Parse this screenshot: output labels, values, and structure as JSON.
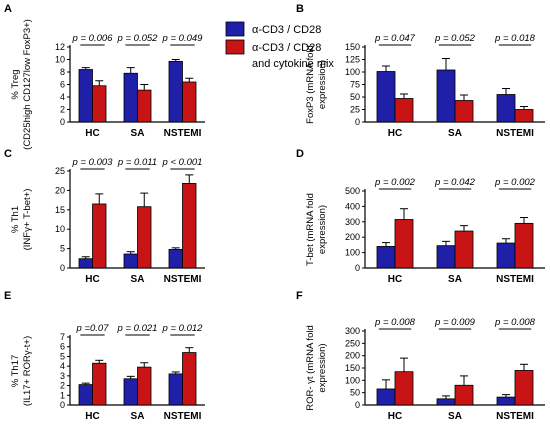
{
  "legend": {
    "items": [
      {
        "label": "α-CD3 / CD28",
        "color": "#1f1fa8"
      },
      {
        "label": "α-CD3 / CD28",
        "color": "#c81414"
      },
      {
        "label": "and cytokine mix",
        "color": null
      }
    ]
  },
  "colors": {
    "series1": "#1f1fa8",
    "series2": "#c81414"
  },
  "chart_data": [
    {
      "panel": "A",
      "type": "bar",
      "ylabel_lines": [
        "% Treg",
        "(CD25high CD127low FoxP3+)"
      ],
      "ylim": [
        0,
        12
      ],
      "yticks": [
        "0",
        "2",
        "4",
        "6",
        "8",
        "10",
        "12"
      ],
      "categories": [
        "HC",
        "SA",
        "NSTEMI"
      ],
      "series": [
        {
          "values": [
            8.4,
            7.8,
            9.7
          ],
          "errors": [
            0.3,
            0.9,
            0.3
          ]
        },
        {
          "values": [
            5.8,
            5.1,
            6.4
          ],
          "errors": [
            0.8,
            0.9,
            0.6
          ]
        }
      ],
      "pvalues": [
        "p = 0.006",
        "p = 0.052",
        "p = 0.049"
      ]
    },
    {
      "panel": "B",
      "type": "bar",
      "ylabel_lines": [
        "FoxP3 (mRNA fold",
        "expression)"
      ],
      "ylim": [
        0,
        150
      ],
      "yticks": [
        "0",
        "25",
        "50",
        "75",
        "100",
        "125",
        "150"
      ],
      "categories": [
        "HC",
        "SA",
        "NSTEMI"
      ],
      "series": [
        {
          "values": [
            101,
            104,
            55
          ],
          "errors": [
            11,
            23,
            12
          ]
        },
        {
          "values": [
            47,
            43,
            25
          ],
          "errors": [
            9,
            11,
            6
          ]
        }
      ],
      "pvalues": [
        "p = 0.047",
        "p = 0.052",
        "p = 0.018"
      ]
    },
    {
      "panel": "C",
      "type": "bar",
      "ylabel_lines": [
        "% Th1",
        "(INFγ+ T-bet+)"
      ],
      "ylim": [
        0,
        25
      ],
      "yticks": [
        "0",
        "5",
        "10",
        "15",
        "20",
        "25"
      ],
      "categories": [
        "HC",
        "SA",
        "NSTEMI"
      ],
      "series": [
        {
          "values": [
            2.4,
            3.6,
            4.8
          ],
          "errors": [
            0.5,
            0.6,
            0.4
          ]
        },
        {
          "values": [
            16.5,
            15.8,
            21.8
          ],
          "errors": [
            2.6,
            3.5,
            2.2
          ]
        }
      ],
      "pvalues": [
        "p = 0.003",
        "p = 0.011",
        "p < 0.001"
      ]
    },
    {
      "panel": "D",
      "type": "bar",
      "ylabel_lines": [
        "T-bet (mRNA fold",
        "expression)"
      ],
      "ylim": [
        0,
        500
      ],
      "yticks": [
        "0",
        "100",
        "200",
        "300",
        "400",
        "500"
      ],
      "categories": [
        "HC",
        "SA",
        "NSTEMI"
      ],
      "series": [
        {
          "values": [
            140,
            145,
            162
          ],
          "errors": [
            25,
            28,
            28
          ]
        },
        {
          "values": [
            315,
            240,
            290
          ],
          "errors": [
            70,
            35,
            38
          ]
        }
      ],
      "pvalues": [
        "p = 0.002",
        "p = 0.042",
        "p = 0.002"
      ]
    },
    {
      "panel": "E",
      "type": "bar",
      "ylabel_lines": [
        "% Th17",
        "(IL17+ RORγ-t+)"
      ],
      "ylim": [
        0,
        7
      ],
      "yticks": [
        "0",
        "1",
        "2",
        "3",
        "4",
        "5",
        "6",
        "7"
      ],
      "categories": [
        "HC",
        "SA",
        "NSTEMI"
      ],
      "series": [
        {
          "values": [
            2.1,
            2.7,
            3.2
          ],
          "errors": [
            0.15,
            0.25,
            0.2
          ]
        },
        {
          "values": [
            4.3,
            3.9,
            5.4
          ],
          "errors": [
            0.3,
            0.45,
            0.5
          ]
        }
      ],
      "pvalues": [
        "p =0.07",
        "p = 0.021",
        "p = 0.012"
      ]
    },
    {
      "panel": "F",
      "type": "bar",
      "ylabel_lines": [
        "ROR- γt (mRNA fold",
        "expression)"
      ],
      "ylim": [
        0,
        300
      ],
      "yticks": [
        "0",
        "50",
        "100",
        "150",
        "200",
        "250",
        "300"
      ],
      "categories": [
        "HC",
        "SA",
        "NSTEMI"
      ],
      "series": [
        {
          "values": [
            65,
            25,
            32
          ],
          "errors": [
            37,
            12,
            10
          ]
        },
        {
          "values": [
            135,
            80,
            140
          ],
          "errors": [
            55,
            38,
            25
          ]
        }
      ],
      "pvalues": [
        "p = 0.008",
        "p = 0.009",
        "p = 0.008"
      ]
    }
  ]
}
